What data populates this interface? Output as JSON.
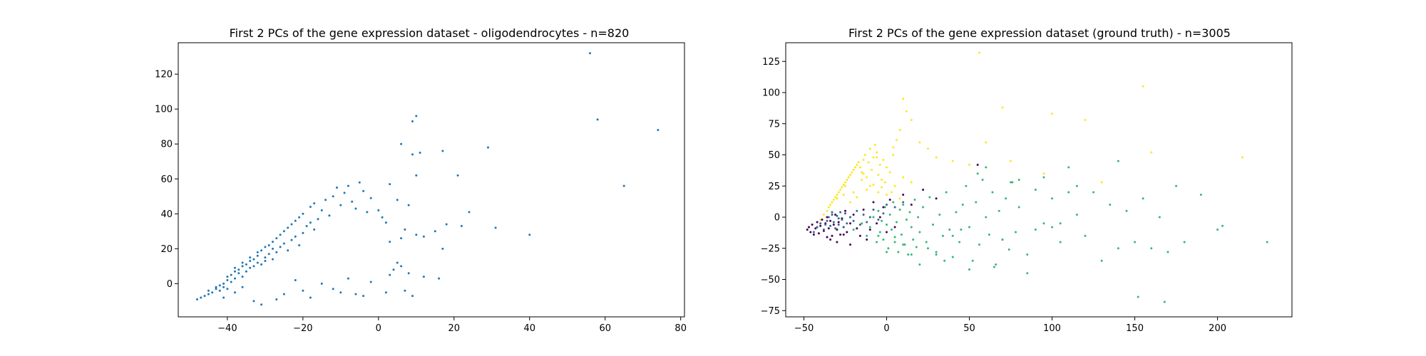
{
  "chart_data": [
    {
      "type": "scatter",
      "title": "First 2 PCs of the gene expression dataset - oligodendrocytes - n=820",
      "xlabel": "",
      "ylabel": "",
      "xlim": [
        -53,
        81
      ],
      "ylim": [
        -19,
        138
      ],
      "xticks": [
        -40,
        -20,
        0,
        20,
        40,
        60,
        80
      ],
      "yticks": [
        0,
        20,
        40,
        60,
        80,
        100,
        120
      ],
      "xtick_labels": [
        "−40",
        "−20",
        "0",
        "20",
        "40",
        "60",
        "80"
      ],
      "ytick_labels": [
        "0",
        "20",
        "40",
        "60",
        "80",
        "100",
        "120"
      ],
      "grid": false,
      "series": [
        {
          "color": "#1f77b4",
          "x": [
            -48,
            -47,
            -46,
            -45,
            -45,
            -44,
            -43,
            -43,
            -42,
            -42,
            -41,
            -41,
            -40,
            -40,
            -40,
            -39,
            -39,
            -38,
            -38,
            -38,
            -37,
            -37,
            -36,
            -36,
            -36,
            -35,
            -35,
            -34,
            -34,
            -34,
            -33,
            -33,
            -32,
            -32,
            -32,
            -31,
            -31,
            -30,
            -30,
            -30,
            -29,
            -29,
            -28,
            -28,
            -28,
            -27,
            -27,
            -26,
            -26,
            -25,
            -25,
            -24,
            -24,
            -23,
            -23,
            -22,
            -22,
            -21,
            -21,
            -20,
            -20,
            -19,
            -18,
            -18,
            -17,
            -17,
            -16,
            -15,
            -14,
            -13,
            -12,
            -11,
            -10,
            -9,
            -8,
            -7,
            -6,
            -5,
            -4,
            -3,
            -2,
            0,
            1,
            2,
            3,
            5,
            6,
            7,
            8,
            9,
            10,
            10,
            9,
            11,
            12,
            16,
            17,
            17,
            18,
            21,
            22,
            24,
            29,
            31,
            40,
            56,
            58,
            65,
            74,
            -36,
            -38,
            -41,
            -33,
            -31,
            -27,
            -25,
            -22,
            -20,
            -18,
            -15,
            -12,
            -10,
            -8,
            -6,
            -4,
            -2,
            2,
            4,
            6,
            8,
            9,
            7,
            5,
            3,
            10,
            12,
            15,
            6,
            3
          ],
          "y": [
            -9,
            -8,
            -7,
            -6,
            -4,
            -5,
            -3,
            -2,
            -4,
            -1,
            0,
            -2,
            2,
            4,
            -3,
            1,
            5,
            3,
            7,
            9,
            6,
            8,
            10,
            4,
            12,
            7,
            11,
            13,
            9,
            15,
            10,
            14,
            12,
            16,
            18,
            11,
            19,
            15,
            21,
            13,
            17,
            22,
            14,
            20,
            24,
            18,
            26,
            21,
            28,
            23,
            30,
            19,
            32,
            25,
            34,
            27,
            36,
            22,
            38,
            29,
            40,
            33,
            35,
            44,
            31,
            46,
            37,
            42,
            48,
            39,
            50,
            55,
            45,
            52,
            56,
            47,
            43,
            58,
            53,
            41,
            49,
            42,
            38,
            35,
            57,
            48,
            80,
            31,
            45,
            93,
            96,
            62,
            74,
            75,
            4,
            3,
            20,
            76,
            34,
            62,
            33,
            41,
            78,
            32,
            28,
            132,
            94,
            56,
            88,
            -2,
            -5,
            -8,
            -10,
            -12,
            -9,
            -6,
            2,
            -4,
            -8,
            0,
            -3,
            -5,
            3,
            -6,
            -7,
            1,
            -5,
            8,
            10,
            6,
            -7,
            -4,
            12,
            5,
            28,
            27,
            30,
            26,
            24
          ]
        }
      ]
    },
    {
      "type": "scatter",
      "title": "First 2 PCs of the gene expression dataset (ground truth) - n=3005",
      "xlabel": "",
      "ylabel": "",
      "xlim": [
        -61,
        245
      ],
      "ylim": [
        -80,
        140
      ],
      "xticks": [
        -50,
        0,
        50,
        100,
        150,
        200
      ],
      "yticks": [
        -75,
        -50,
        -25,
        0,
        25,
        50,
        75,
        100,
        125
      ],
      "xtick_labels": [
        "−50",
        "0",
        "50",
        "100",
        "150",
        "200"
      ],
      "ytick_labels": [
        "−75",
        "−50",
        "−25",
        "0",
        "25",
        "50",
        "75",
        "100",
        "125"
      ],
      "grid": false,
      "series": [
        {
          "color": "#fde725",
          "x": [
            -40,
            -38,
            -36,
            -35,
            -34,
            -33,
            -32,
            -31,
            -30,
            -29,
            -28,
            -27,
            -26,
            -25,
            -24,
            -23,
            -22,
            -21,
            -20,
            -19,
            -18,
            -17,
            -16,
            -15,
            -14,
            -13,
            -12,
            -11,
            -10,
            -9,
            -8,
            -7,
            -6,
            -5,
            -4,
            -3,
            -2,
            -1,
            0,
            2,
            4,
            6,
            8,
            10,
            12,
            15,
            20,
            25,
            30,
            40,
            50,
            60,
            70,
            100,
            120,
            155,
            160,
            215,
            -30,
            -25,
            -20,
            -15,
            -10,
            -5,
            0,
            5,
            10,
            15,
            -22,
            -18,
            -12,
            -8,
            -3,
            3,
            8,
            56,
            75,
            95,
            110,
            130,
            -26,
            -14,
            -6,
            4
          ],
          "y": [
            -2,
            2,
            5,
            8,
            10,
            12,
            14,
            16,
            18,
            20,
            22,
            24,
            26,
            28,
            30,
            32,
            34,
            36,
            38,
            40,
            42,
            44,
            40,
            36,
            46,
            50,
            32,
            44,
            55,
            38,
            48,
            58,
            52,
            34,
            42,
            30,
            46,
            28,
            40,
            36,
            50,
            62,
            70,
            95,
            85,
            78,
            60,
            55,
            48,
            45,
            42,
            60,
            88,
            83,
            78,
            105,
            52,
            48,
            15,
            25,
            20,
            30,
            25,
            20,
            18,
            25,
            32,
            28,
            12,
            16,
            22,
            26,
            24,
            20,
            15,
            132,
            45,
            35,
            40,
            28,
            18,
            35,
            48,
            56
          ]
        },
        {
          "color": "#35b779",
          "x": [
            -20,
            -15,
            -12,
            -10,
            -8,
            -6,
            -5,
            -4,
            -3,
            -2,
            -1,
            0,
            1,
            2,
            3,
            4,
            5,
            6,
            7,
            8,
            9,
            10,
            11,
            12,
            13,
            14,
            15,
            16,
            17,
            18,
            19,
            20,
            22,
            24,
            26,
            28,
            30,
            32,
            34,
            36,
            38,
            40,
            42,
            44,
            46,
            48,
            50,
            52,
            54,
            56,
            58,
            60,
            62,
            64,
            66,
            68,
            70,
            72,
            74,
            76,
            78,
            80,
            85,
            90,
            95,
            100,
            105,
            110,
            115,
            120,
            125,
            130,
            135,
            140,
            145,
            150,
            155,
            160,
            165,
            170,
            175,
            180,
            190,
            200,
            203,
            230,
            152,
            168,
            140,
            -5,
            5,
            15,
            25,
            35,
            45,
            55,
            65,
            75,
            85,
            95,
            105,
            115,
            0,
            10,
            20,
            30,
            40,
            50,
            60,
            70,
            80,
            90,
            100,
            110
          ],
          "y": [
            -10,
            -5,
            -15,
            -8,
            0,
            -20,
            5,
            -12,
            -3,
            -18,
            8,
            -6,
            -25,
            2,
            -10,
            12,
            -16,
            -4,
            -28,
            6,
            -14,
            10,
            -22,
            -2,
            -30,
            4,
            -8,
            -18,
            14,
            -24,
            0,
            -12,
            8,
            -20,
            16,
            -6,
            -28,
            2,
            -15,
            20,
            -10,
            -32,
            4,
            -20,
            10,
            25,
            -8,
            -35,
            12,
            -22,
            30,
            0,
            -14,
            20,
            -38,
            5,
            -18,
            15,
            -26,
            28,
            -12,
            8,
            -30,
            22,
            -5,
            15,
            -20,
            40,
            2,
            -15,
            20,
            -35,
            10,
            -25,
            5,
            -20,
            15,
            -25,
            0,
            -28,
            25,
            -20,
            18,
            -10,
            -7,
            -20,
            -64,
            -68,
            45,
            -15,
            -20,
            -30,
            -25,
            -35,
            -10,
            35,
            -40,
            28,
            -45,
            32,
            -5,
            25,
            -28,
            -22,
            -38,
            -30,
            -15,
            -42,
            40,
            -18,
            30,
            -10,
            -8,
            20
          ]
        },
        {
          "color": "#440154",
          "x": [
            -48,
            -47,
            -46,
            -45,
            -44,
            -43,
            -42,
            -41,
            -40,
            -39,
            -38,
            -37,
            -36,
            -35,
            -34,
            -33,
            -32,
            -31,
            -30,
            -29,
            -28,
            -27,
            -26,
            -25,
            -24,
            -22,
            -20,
            -18,
            -16,
            -14,
            -12,
            -10,
            -8,
            -6,
            -4,
            -2,
            0,
            2,
            5,
            10,
            15,
            22,
            30,
            55,
            -36,
            -34,
            -30,
            -26,
            -22
          ],
          "y": [
            -10,
            -8,
            -12,
            -6,
            -14,
            -9,
            -4,
            -13,
            -7,
            -2,
            -11,
            -5,
            0,
            -9,
            -3,
            -15,
            -6,
            2,
            -10,
            -4,
            -14,
            -1,
            -8,
            5,
            -12,
            -5,
            2,
            -9,
            -15,
            6,
            -18,
            -10,
            12,
            -5,
            0,
            8,
            -12,
            14,
            -8,
            18,
            10,
            22,
            15,
            42,
            -16,
            -18,
            -20,
            -14,
            -22
          ]
        },
        {
          "color": "#31688e",
          "x": [
            -44,
            -42,
            -40,
            -38,
            -36,
            -35,
            -34,
            -33,
            -32,
            -31,
            -30,
            -29,
            -28,
            -27,
            -26,
            -25,
            -24,
            -22,
            -20,
            -18,
            -16,
            -14,
            -12,
            -10,
            -8,
            -5,
            -2,
            0,
            5,
            10,
            -37,
            -33,
            -29
          ],
          "y": [
            -12,
            -8,
            -5,
            -10,
            -3,
            0,
            -7,
            2,
            -4,
            -9,
            1,
            -6,
            4,
            -2,
            -8,
            3,
            -5,
            0,
            -3,
            5,
            -6,
            2,
            -4,
            0,
            6,
            -2,
            3,
            10,
            8,
            12,
            -6,
            4,
            -1
          ]
        }
      ]
    }
  ]
}
